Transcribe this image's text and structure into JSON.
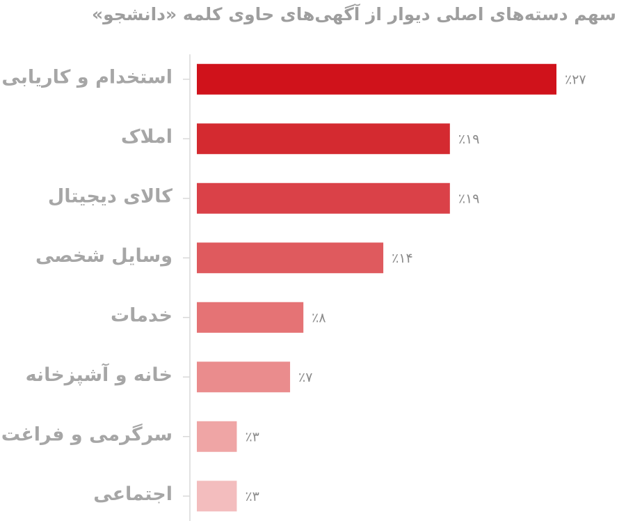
{
  "chart_data": {
    "type": "bar",
    "orientation": "horizontal",
    "title": "سهم دسته‌های اصلی دیوار از آگهی‌های حاوی کلمه «دانشجو»",
    "categories": [
      "استخدام و کاریابی",
      "املاک",
      "کالای دیجیتال",
      "وسایل شخصی",
      "خدمات",
      "خانه و آشپزخانه",
      "سرگرمی و فراغت",
      "اجتماعی"
    ],
    "values": [
      27,
      19,
      19,
      14,
      8,
      7,
      3,
      3
    ],
    "value_labels": [
      "٪۲۷",
      "٪۱۹",
      "٪۱۹",
      "٪۱۴",
      "٪۸",
      "٪۷",
      "٪۳",
      "٪۳"
    ],
    "colors": [
      "#d0121b",
      "#d42a30",
      "#da4148",
      "#df5a5e",
      "#e57375",
      "#ea8c8d",
      "#efa5a5",
      "#f3bdbe"
    ],
    "xlim": [
      0,
      27
    ]
  }
}
